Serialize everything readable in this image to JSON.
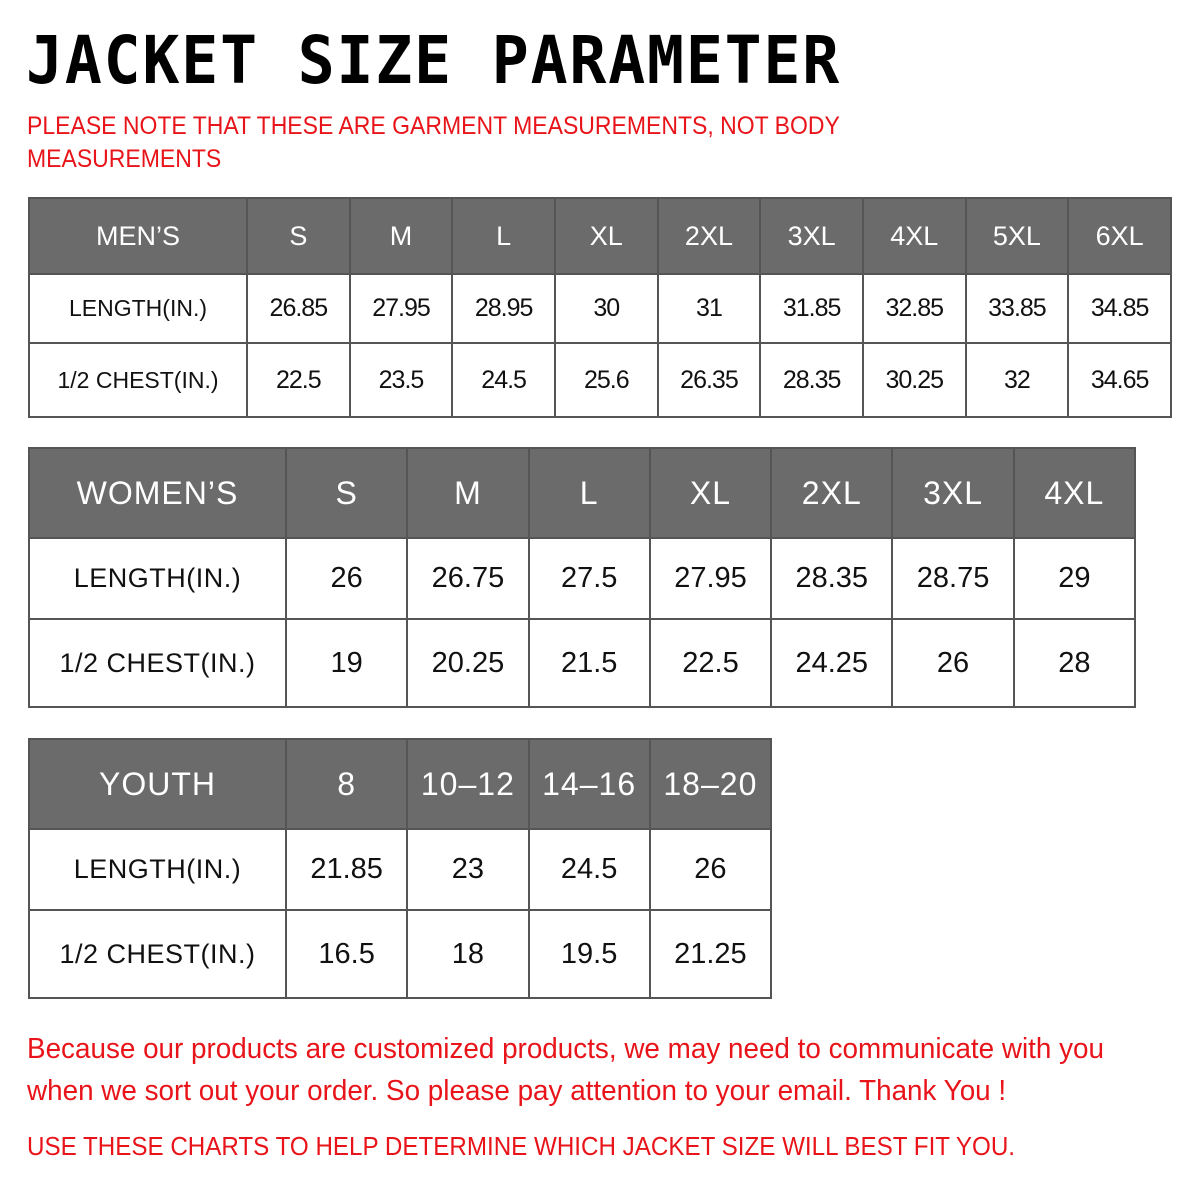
{
  "title": "JACKET SIZE PARAMETER",
  "note": "PLEASE NOTE THAT THESE ARE GARMENT MEASUREMENTS, NOT BODY MEASUREMENTS",
  "mens": {
    "header": [
      "MEN’S",
      "S",
      "M",
      "L",
      "XL",
      "2XL",
      "3XL",
      "4XL",
      "5XL",
      "6XL"
    ],
    "rows": [
      [
        "LENGTH(IN.)",
        "26.85",
        "27.95",
        "28.95",
        "30",
        "31",
        "31.85",
        "32.85",
        "33.85",
        "34.85"
      ],
      [
        "1/2 CHEST(IN.)",
        "22.5",
        "23.5",
        "24.5",
        "25.6",
        "26.35",
        "28.35",
        "30.25",
        "32",
        "34.65"
      ]
    ]
  },
  "womens": {
    "header": [
      "WOMEN’S",
      "S",
      "M",
      "L",
      "XL",
      "2XL",
      "3XL",
      "4XL"
    ],
    "rows": [
      [
        "LENGTH(IN.)",
        "26",
        "26.75",
        "27.5",
        "27.95",
        "28.35",
        "28.75",
        "29"
      ],
      [
        "1/2 CHEST(IN.)",
        "19",
        "20.25",
        "21.5",
        "22.5",
        "24.25",
        "26",
        "28"
      ]
    ]
  },
  "youth": {
    "header": [
      "YOUTH",
      "8",
      "10–12",
      "14–16",
      "18–20"
    ],
    "rows": [
      [
        "LENGTH(IN.)",
        "21.85",
        "23",
        "24.5",
        "26"
      ],
      [
        "1/2 CHEST(IN.)",
        "16.5",
        "18",
        "19.5",
        "21.25"
      ]
    ]
  },
  "footer": {
    "message": "Because our products are customized products, we may need to communicate with you when we sort out your order. So please pay attention to your email. Thank You !",
    "advice": "USE THESE CHARTS TO HELP DETERMINE WHICH JACKET SIZE WILL BEST FIT YOU."
  },
  "colors": {
    "accent_red": "#e8141a",
    "header_gray": "#6b6b6b"
  }
}
